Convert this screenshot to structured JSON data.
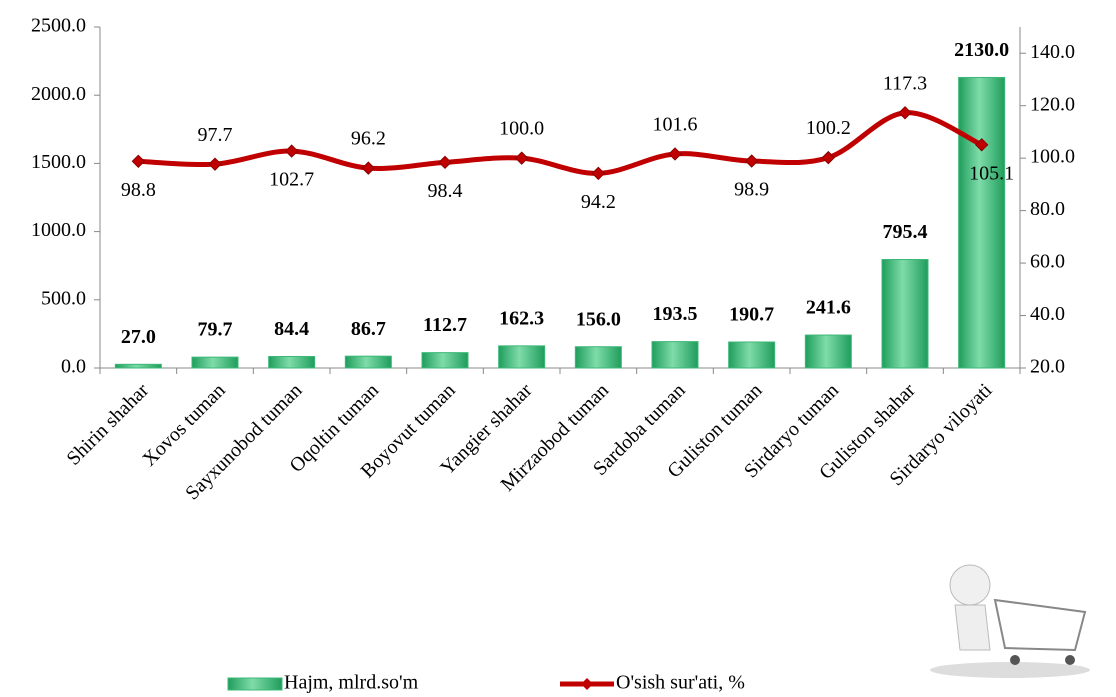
{
  "chart_data": {
    "type": "bar-line",
    "categories": [
      "Shirin shahar",
      "Xovos tuman",
      "Sayxunobod tuman",
      "Oqoltin tuman",
      "Boyovut tuman",
      "Yangier shahar",
      "Mirzaobod tuman",
      "Sardoba tuman",
      "Guliston tuman",
      "Sirdaryo tuman",
      "Guliston shahar",
      "Sirdaryo viloyati"
    ],
    "series": [
      {
        "name": "Hajm, mlrd.so'm",
        "color": "#3cb878",
        "type": "bar",
        "values": [
          27.0,
          79.7,
          84.4,
          86.7,
          112.7,
          162.3,
          156.0,
          193.5,
          190.7,
          241.6,
          795.4,
          2130.0
        ],
        "value_labels": [
          "27.0",
          "79.7",
          "84.4",
          "86.7",
          "112.7",
          "162.3",
          "156.0",
          "193.5",
          "190.7",
          "241.6",
          "795.4",
          "2130.0"
        ]
      },
      {
        "name": "O'sish sur'ati, %",
        "color": "#c00000",
        "type": "line",
        "axis": "y2",
        "values": [
          98.8,
          97.7,
          102.7,
          96.2,
          98.4,
          100.0,
          94.2,
          101.6,
          98.9,
          100.2,
          117.3,
          105.1
        ],
        "value_labels": [
          "98.8",
          "97.7",
          "102.7",
          "96.2",
          "98.4",
          "100.0",
          "94.2",
          "101.6",
          "98.9",
          "100.2",
          "117.3",
          "105.1"
        ]
      }
    ],
    "ylim": [
      0,
      2500
    ],
    "yticks": [
      {
        "value": 0,
        "label": "0.0"
      },
      {
        "value": 500,
        "label": "500.0"
      },
      {
        "value": 1000,
        "label": "1000.0"
      },
      {
        "value": 1500,
        "label": "1500.0"
      },
      {
        "value": 2000,
        "label": "2000.0"
      },
      {
        "value": 2500,
        "label": "2500.0"
      }
    ],
    "y2lim": [
      20,
      150
    ],
    "y2ticks": [
      {
        "value": 20,
        "label": "20.0"
      },
      {
        "value": 40,
        "label": "40.0"
      },
      {
        "value": 60,
        "label": "60.0"
      },
      {
        "value": 80,
        "label": "80.0"
      },
      {
        "value": 100,
        "label": "100.0"
      },
      {
        "value": 120,
        "label": "120.0"
      },
      {
        "value": 140,
        "label": "140.0"
      }
    ],
    "grid": false
  }
}
